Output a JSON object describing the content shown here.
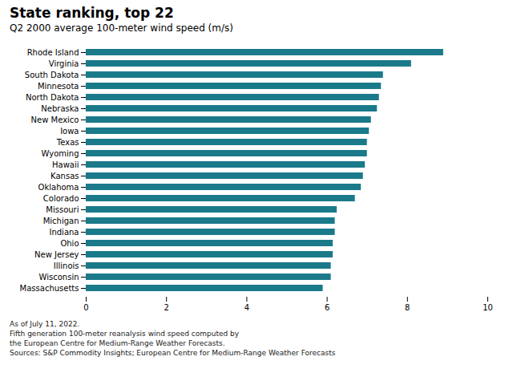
{
  "chart_data": {
    "type": "bar",
    "orientation": "horizontal",
    "title": "State ranking, top 22",
    "subtitle": "Q2 2000 average 100-meter wind speed (m/s)",
    "footnote": "As of July 11, 2022.\nFifth generation 100-meter reanalysis wind speed computed by\nthe European Centre for Medium-Range Weather Forecasts.\nSources: S&P Commodity Insights; European Centre for Medium-Range Weather Forecasts",
    "categories": [
      "Rhode Island",
      "Virginia",
      "South Dakota",
      "Minnesota",
      "North Dakota",
      "Nebraska",
      "New Mexico",
      "Iowa",
      "Texas",
      "Wyoming",
      "Hawaii",
      "Kansas",
      "Oklahoma",
      "Colorado",
      "Missouri",
      "Michigan",
      "Indiana",
      "Ohio",
      "New Jersey",
      "Illinois",
      "Wisconsin",
      "Massachusetts"
    ],
    "values": [
      8.9,
      8.1,
      7.4,
      7.35,
      7.3,
      7.25,
      7.1,
      7.05,
      7.0,
      7.0,
      6.95,
      6.9,
      6.85,
      6.7,
      6.25,
      6.2,
      6.2,
      6.15,
      6.15,
      6.1,
      6.1,
      5.9
    ],
    "color": "#1a7a8a",
    "xlim": [
      0,
      10
    ],
    "xticks": [
      0,
      2,
      4,
      6,
      8,
      10
    ],
    "grid": false
  }
}
